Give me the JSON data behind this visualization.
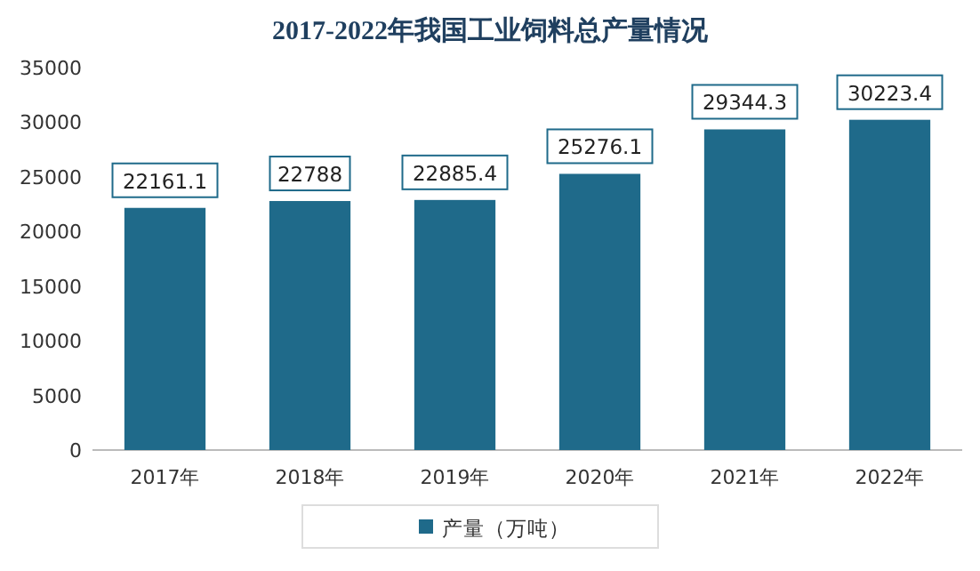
{
  "chart_data": {
    "type": "bar",
    "title": "2017-2022年我国工业饲料总产量情况",
    "categories": [
      "2017年",
      "2018年",
      "2019年",
      "2020年",
      "2021年",
      "2022年"
    ],
    "series": [
      {
        "name": "产量（万吨）",
        "color": "#1f6a8a",
        "values": [
          22161.1,
          22788,
          22885.4,
          25276.1,
          29344.3,
          30223.4
        ]
      }
    ],
    "ylim": [
      0,
      35000
    ],
    "yticks": [
      0,
      5000,
      10000,
      15000,
      20000,
      25000,
      30000,
      35000
    ],
    "data_labels": true,
    "legend": "bottom",
    "grid": false
  }
}
